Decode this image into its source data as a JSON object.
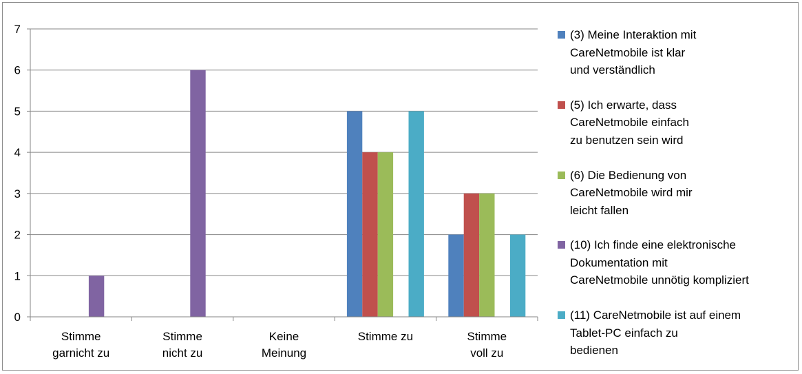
{
  "chart_data": {
    "type": "bar",
    "categories": [
      "Stimme\ngarnicht zu",
      "Stimme\nnicht zu",
      "Keine\nMeinung",
      "Stimme zu",
      "Stimme\nvoll zu"
    ],
    "series": [
      {
        "name": "(3) Meine Interaktion mit\nCareNetmobile ist klar\nund verständlich",
        "color": "#4F81BD",
        "values": [
          0,
          0,
          0,
          5,
          2
        ]
      },
      {
        "name": "(5) Ich erwarte, dass\nCareNetmobile einfach\nzu benutzen sein wird",
        "color": "#C0504D",
        "values": [
          0,
          0,
          0,
          4,
          3
        ]
      },
      {
        "name": "(6) Die Bedienung von\nCareNetmobile wird mir\nleicht fallen",
        "color": "#9BBB59",
        "values": [
          0,
          0,
          0,
          4,
          3
        ]
      },
      {
        "name": "(10) Ich finde eine elektronische\nDokumentation mit\nCareNetmobile unnötig kompliziert",
        "color": "#8064A2",
        "values": [
          1,
          6,
          0,
          0,
          0
        ]
      },
      {
        "name": "(11) CareNetmobile ist auf einem\n Tablet-PC einfach zu\nbedienen",
        "color": "#4BACC6",
        "values": [
          0,
          0,
          0,
          5,
          2
        ]
      }
    ],
    "ylim": [
      0,
      7
    ],
    "yticks": [
      0,
      1,
      2,
      3,
      4,
      5,
      6,
      7
    ],
    "grid": true,
    "legend_position": "right"
  }
}
